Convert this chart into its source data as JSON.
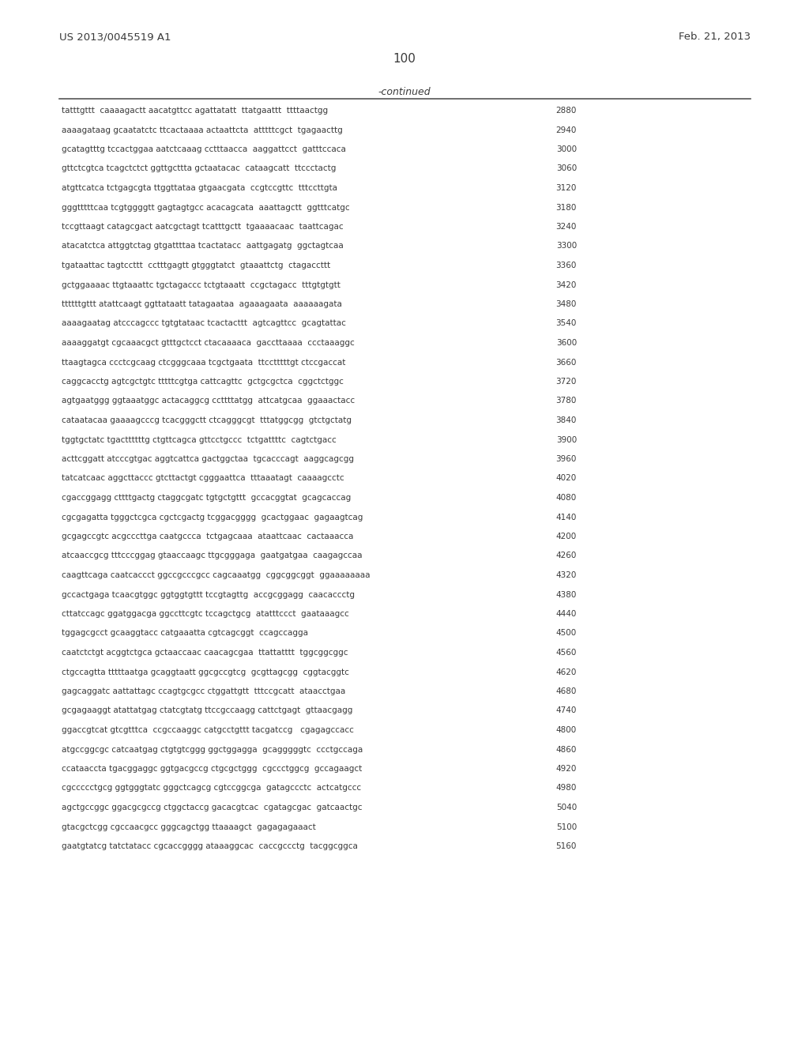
{
  "header_left": "US 2013/0045519 A1",
  "header_right": "Feb. 21, 2013",
  "page_number": "100",
  "continued_label": "-continued",
  "background_color": "#ffffff",
  "text_color": "#3a3a3a",
  "sequences": [
    [
      "tatttgttt  caaaagactt aacatgttcc agattatatt  ttatgaattt  ttttaactgg",
      "2880"
    ],
    [
      "aaaagataag gcaatatctc ttcactaaaa actaattcta  atttttcgct  tgagaacttg",
      "2940"
    ],
    [
      "gcatagtttg tccactggaa aatctcaaag cctttaacca  aaggattcct  gatttccaca",
      "3000"
    ],
    [
      "gttctcgtca tcagctctct ggttgcttta gctaatacac  cataagcatt  ttccctactg",
      "3060"
    ],
    [
      "atgttcatca tctgagcgta ttggttataa gtgaacgata  ccgtccgttc  tttccttgta",
      "3120"
    ],
    [
      "gggtttttcaa tcgtggggtt gagtagtgcc acacagcata  aaattagctt  ggtttcatgc",
      "3180"
    ],
    [
      "tccgttaagt catagcgact aatcgctagt tcatttgctt  tgaaaacaac  taattcagac",
      "3240"
    ],
    [
      "atacatctca attggtctag gtgattttaa tcactatacc  aattgagatg  ggctagtcaa",
      "3300"
    ],
    [
      "tgataattac tagtccttt  cctttgagtt gtgggtatct  gtaaattctg  ctagaccttt",
      "3360"
    ],
    [
      "gctggaaaac ttgtaaattc tgctagaccc tctgtaaatt  ccgctagacc  tttgtgtgtt",
      "3420"
    ],
    [
      "ttttttgttt atattcaagt ggttataatt tatagaataa  agaaagaata  aaaaaagata",
      "3480"
    ],
    [
      "aaaagaatag atcccagccc tgtgtataac tcactacttt  agtcagttcc  gcagtattac",
      "3540"
    ],
    [
      "aaaaggatgt cgcaaacgct gtttgctcct ctacaaaaca  gaccttaaaa  ccctaaaggc",
      "3600"
    ],
    [
      "ttaagtagca ccctcgcaag ctcgggcaaa tcgctgaata  ttcctttttgt ctccgaccat",
      "3660"
    ],
    [
      "caggcacctg agtcgctgtc tttttcgtga cattcagttc  gctgcgctca  cggctctggc",
      "3720"
    ],
    [
      "agtgaatggg ggtaaatggc actacaggcg ccttttatgg  attcatgcaa  ggaaactacc",
      "3780"
    ],
    [
      "cataatacaa gaaaagcccg tcacgggctt ctcagggcgt  tttatggcgg  gtctgctatg",
      "3840"
    ],
    [
      "tggtgctatc tgacttttttg ctgttcagca gttcctgccc  tctgattttc  cagtctgacc",
      "3900"
    ],
    [
      "acttcggatt atcccgtgac aggtcattca gactggctaa  tgcacccagt  aaggcagcgg",
      "3960"
    ],
    [
      "tatcatcaac aggcttaccc gtcttactgt cgggaattca  tttaaatagt  caaaagcctc",
      "4020"
    ],
    [
      "cgaccggagg cttttgactg ctaggcgatc tgtgctgttt  gccacggtat  gcagcaccag",
      "4080"
    ],
    [
      "cgcgagatta tgggctcgca cgctcgactg tcggacgggg  gcactggaac  gagaagtcag",
      "4140"
    ],
    [
      "gcgagccgtc acgcccttga caatgccca  tctgagcaaa  ataattcaac  cactaaacca",
      "4200"
    ],
    [
      "atcaaccgcg tttcccggag gtaaccaagc ttgcgggaga  gaatgatgaa  caagagccaa",
      "4260"
    ],
    [
      "caagttcaga caatcaccct ggccgcccgcc cagcaaatgg  cggcggcggt  ggaaaaaaaa",
      "4320"
    ],
    [
      "gccactgaga tcaacgtggc ggtggtgttt tccgtagttg  accgcggagg  caacaccctg",
      "4380"
    ],
    [
      "cttatccagc ggatggacga ggccttcgtc tccagctgcg  atatttccct  gaataaagcc",
      "4440"
    ],
    [
      "tggagcgcct gcaaggtacc catgaaatta cgtcagcggt  ccagccagga",
      "4500"
    ],
    [
      "caatctctgt acggtctgca gctaaccaac caacagcgaa  ttattatttt  tggcggcggc",
      "4560"
    ],
    [
      "ctgccagtta tttttaatga gcaggtaatt ggcgccgtcg  gcgttagcgg  cggtacggtc",
      "4620"
    ],
    [
      "gagcaggatc aattattagc ccagtgcgcc ctggattgtt  tttccgcatt  ataacctgaa",
      "4680"
    ],
    [
      "gcgagaaggt atattatgag ctatcgtatg ttccgccaagg cattctgagt  gttaacgagg",
      "4740"
    ],
    [
      "ggaccgtcat gtcgtttca  ccgccaaggc catgcctgttt tacgatccg   cgagagccacc",
      "4800"
    ],
    [
      "atgccggcgc catcaatgag ctgtgtcggg ggctggagga  gcagggggtc  ccctgccaga",
      "4860"
    ],
    [
      "ccataaccta tgacggaggc ggtgacgccg ctgcgctggg  cgccctggcg  gccagaagct",
      "4920"
    ],
    [
      "cgccccctgcg ggtgggtatc gggctcagcg cgtccggcga  gatagccctc  actcatgccc",
      "4980"
    ],
    [
      "agctgccggc ggacgcgccg ctggctaccg gacacgtcac  cgatagcgac  gatcaactgc",
      "5040"
    ],
    [
      "gtacgctcgg cgccaacgcc gggcagctgg ttaaaagct  gagagagaaact",
      "5100"
    ],
    [
      "gaatgtatcg tatctatacc cgcaccgggg ataaaggcac  caccgccctg  tacggcggca",
      "5160"
    ]
  ]
}
